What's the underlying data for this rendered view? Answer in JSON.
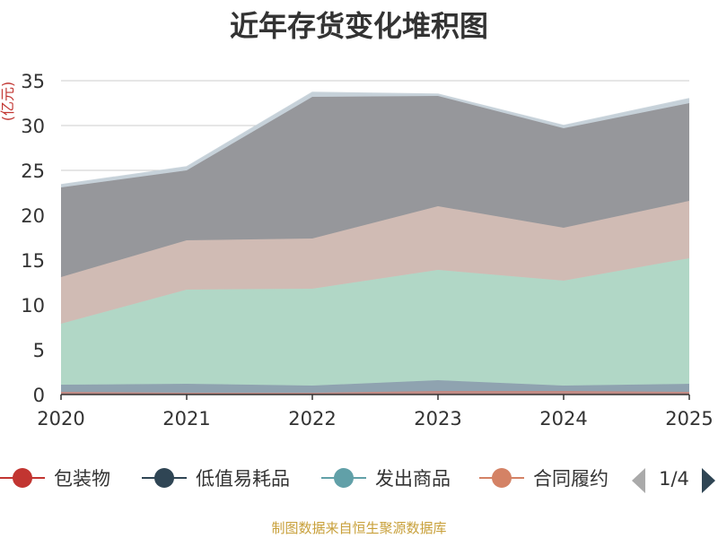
{
  "title": "近年存货变化堆积图",
  "source": "制图数据来自恒生聚源数据库",
  "chart_data": {
    "type": "area",
    "stacked": true,
    "title": "近年存货变化堆积图",
    "ylabel": "(亿元)",
    "xlabel": "",
    "categories": [
      "2020",
      "2021",
      "2022",
      "2023",
      "2024",
      "2025"
    ],
    "ylim": [
      0,
      35
    ],
    "yticks": [
      0,
      5,
      10,
      15,
      20,
      25,
      30,
      35
    ],
    "grid": true,
    "series": [
      {
        "name": "包装物",
        "legend_color": "#c23531",
        "fill": "#c08a84",
        "values": [
          0.3,
          0.2,
          0.2,
          0.4,
          0.4,
          0.3
        ]
      },
      {
        "name": "低值易耗品",
        "legend_color": "#2f4554",
        "fill": "#8fa3b0",
        "values": [
          0.8,
          1.0,
          0.8,
          1.2,
          0.6,
          0.9
        ]
      },
      {
        "name": "发出商品",
        "legend_color": "#61a0a8",
        "fill": "#b1d7c6",
        "values": [
          6.8,
          10.5,
          10.8,
          12.3,
          11.7,
          14.0
        ]
      },
      {
        "name": "合同履约",
        "legend_color": "#d48265",
        "fill": "#d0bbb4",
        "values": [
          5.2,
          5.5,
          5.6,
          7.1,
          5.9,
          6.4
        ]
      },
      {
        "name": "",
        "legend_color": "#8e8e93",
        "fill": "#96979b",
        "values": [
          10.0,
          7.8,
          15.8,
          12.3,
          11.1,
          10.9
        ]
      },
      {
        "name": "",
        "legend_color": "#cdd5dc",
        "fill": "#c6d1d9",
        "values": [
          0.3,
          0.4,
          0.5,
          0.2,
          0.3,
          0.5
        ]
      }
    ],
    "legend": {
      "position": "bottom",
      "page": "1/4"
    }
  }
}
